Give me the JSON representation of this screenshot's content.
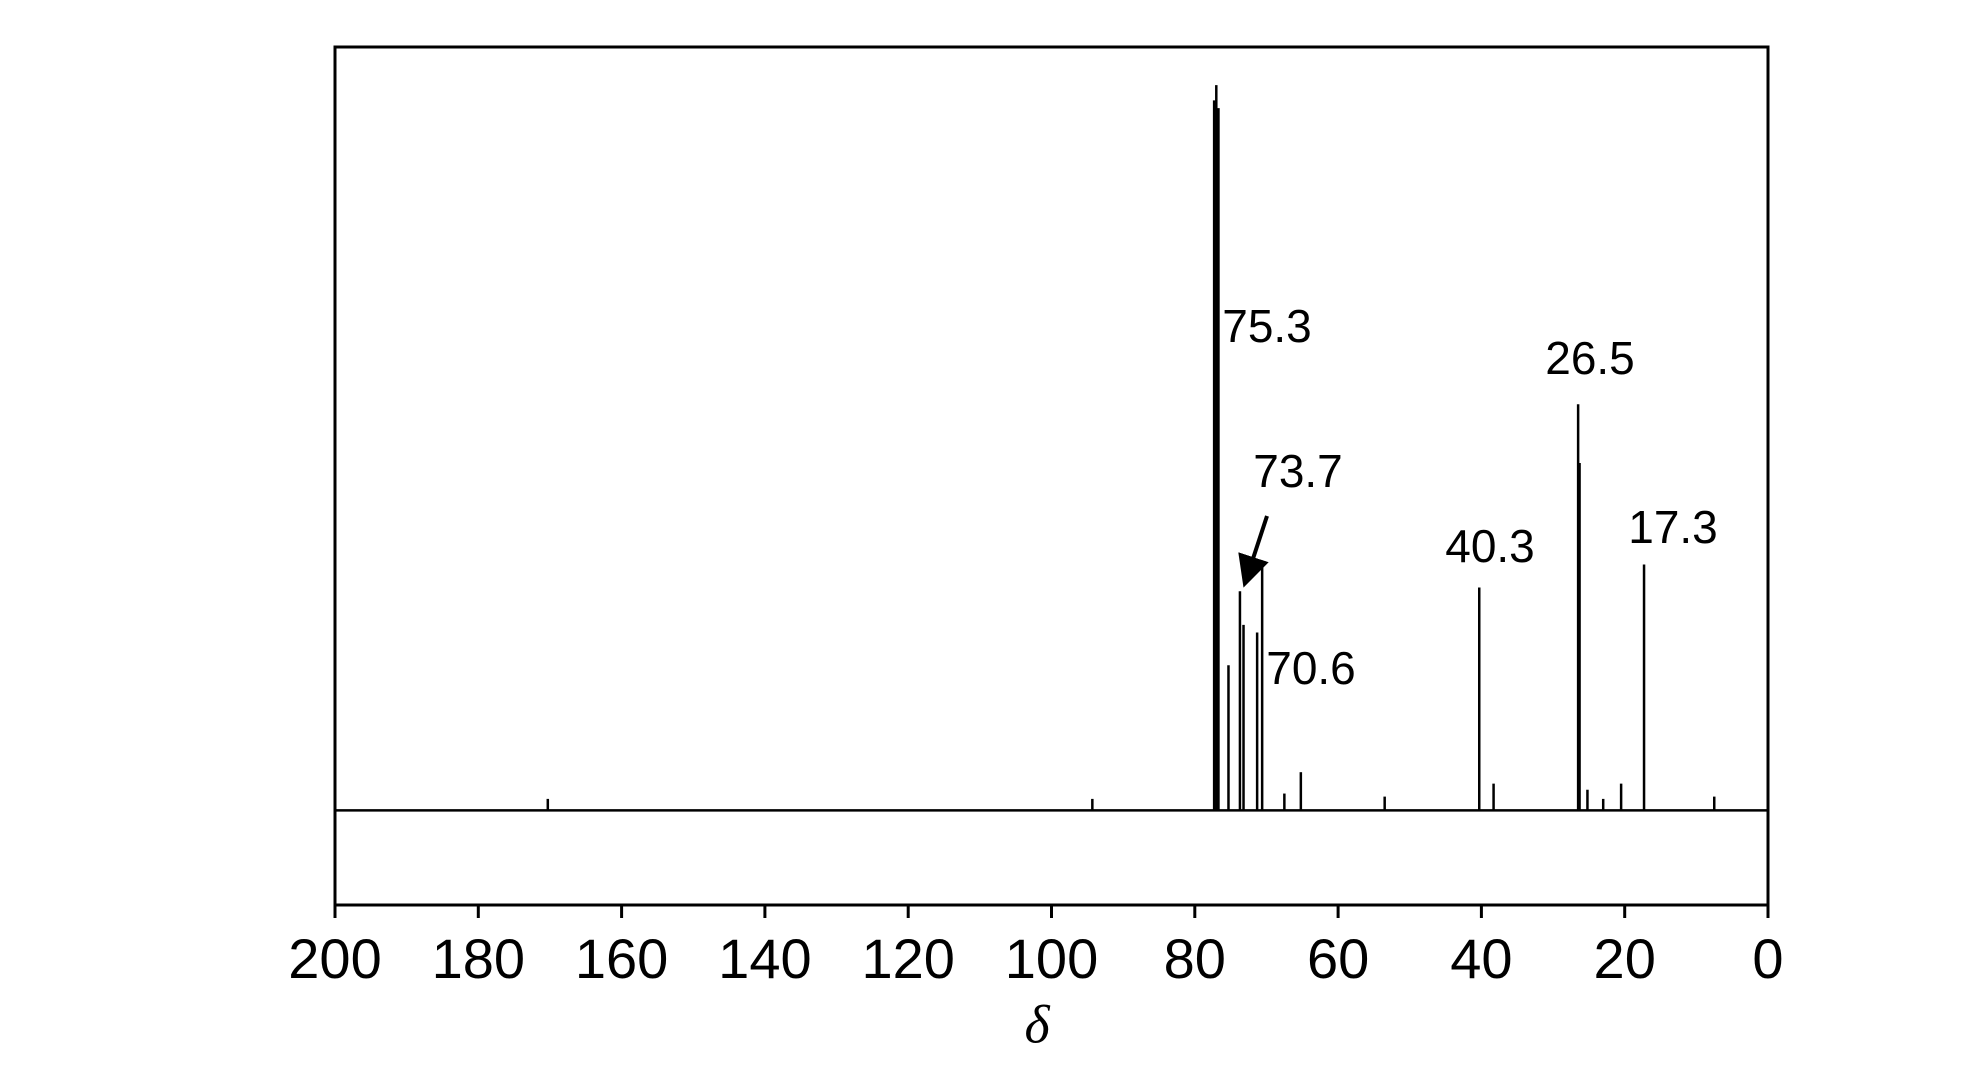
{
  "chart_data": {
    "type": "stick",
    "x_label": "δ",
    "xlim": [
      200,
      0
    ],
    "xticks": [
      200,
      180,
      160,
      140,
      120,
      100,
      80,
      60,
      40,
      20,
      0
    ],
    "ylim": [
      -12.4,
      100
    ],
    "color": "#000000",
    "x": [
      170.3,
      94.3,
      77.3,
      77.0,
      76.7,
      75.3,
      73.7,
      73.2,
      71.3,
      70.6,
      67.5,
      65.2,
      53.5,
      40.3,
      38.3,
      26.5,
      26.3,
      25.2,
      23.0,
      20.5,
      17.3,
      7.5
    ],
    "values": [
      1.5,
      1.5,
      93,
      95,
      92,
      19.0,
      28.7,
      24.3,
      23.3,
      31.9,
      2.2,
      5.0,
      1.8,
      29.2,
      3.5,
      53.2,
      45.5,
      2.7,
      1.5,
      3.5,
      32.2,
      1.8
    ],
    "annotations": [
      "75.3",
      "73.7",
      "70.6",
      "40.3",
      "26.5",
      "17.3"
    ]
  }
}
